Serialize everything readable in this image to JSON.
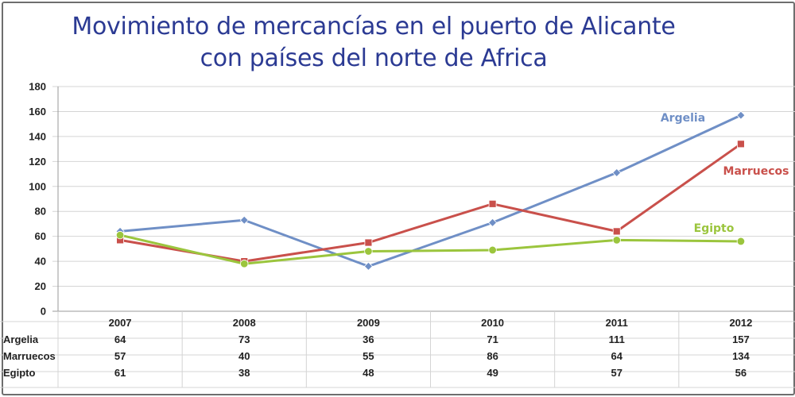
{
  "chart_data": {
    "type": "line",
    "title": "Movimiento de mercancías en el puerto de Alicante",
    "subtitle": "con países del norte de Africa",
    "categories": [
      "2007",
      "2008",
      "2009",
      "2010",
      "2011",
      "2012"
    ],
    "ylim": [
      0,
      180
    ],
    "yticks": [
      "0",
      "20",
      "40",
      "60",
      "80",
      "100",
      "120",
      "140",
      "160",
      "180"
    ],
    "grid": true,
    "series": [
      {
        "name": "Argelia",
        "values": [
          64,
          73,
          36,
          71,
          111,
          157
        ],
        "color": "#6f8fc6",
        "marker": "diamond"
      },
      {
        "name": "Marruecos",
        "values": [
          57,
          40,
          55,
          86,
          64,
          134
        ],
        "color": "#c9504b",
        "marker": "square"
      },
      {
        "name": "Egipto",
        "values": [
          61,
          38,
          48,
          49,
          57,
          56
        ],
        "color": "#9bc53d",
        "marker": "circle"
      }
    ],
    "data_table": true
  }
}
